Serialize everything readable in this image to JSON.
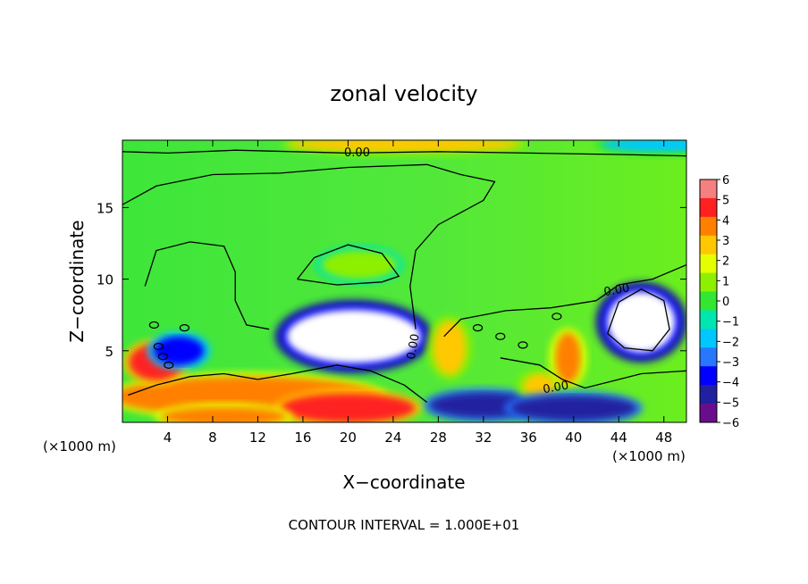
{
  "chart_data": {
    "type": "heatmap",
    "title": "zonal velocity",
    "xlabel": "X−coordinate",
    "ylabel": "Z−coordinate",
    "x_unit": "(×1000 m)",
    "x_ticks": [
      4,
      8,
      12,
      16,
      20,
      24,
      28,
      32,
      36,
      40,
      44,
      48
    ],
    "y_ticks": [
      5,
      10,
      15
    ],
    "xlim": [
      0,
      50
    ],
    "ylim": [
      0,
      19.7
    ],
    "colorbar": {
      "ticks": [
        6,
        5,
        4,
        3,
        2,
        1,
        0,
        -1,
        -2,
        -3,
        -4,
        -5,
        -6
      ],
      "labels": [
        "6",
        "5",
        "4",
        "3",
        "2",
        "1",
        "0",
        "−1",
        "−2",
        "−3",
        "−4",
        "−5",
        "−6"
      ],
      "range": [
        -6,
        6
      ]
    },
    "contour_labels": [
      "0.00",
      "0.00",
      "0.00",
      "0.00"
    ],
    "footer": "CONTOUR INTERVAL = 1.000E+01",
    "features": [
      {
        "x": 11,
        "z": 1.8,
        "value": 4
      },
      {
        "x": 3,
        "z": 4.2,
        "value": 5
      },
      {
        "x": 5,
        "z": 5.0,
        "value": -4
      },
      {
        "x": 20.5,
        "z": 6.0,
        "value": -8
      },
      {
        "x": 32,
        "z": 1.2,
        "value": -5
      },
      {
        "x": 46,
        "z": 7.0,
        "value": -8
      },
      {
        "x": 37,
        "z": 2.5,
        "value": 3
      },
      {
        "x": 39.5,
        "z": 4.5,
        "value": 4
      },
      {
        "x": 29,
        "z": 5.2,
        "value": 3
      },
      {
        "x": 21,
        "z": 11.0,
        "value": 1
      },
      {
        "x": 20,
        "z": 1.0,
        "value": 5
      },
      {
        "x": 9,
        "z": 0.4,
        "value": 4
      },
      {
        "x": 40,
        "z": 1.0,
        "value": -5
      },
      {
        "x": 25,
        "z": 19.4,
        "value": 3
      },
      {
        "x": 48,
        "z": 19.4,
        "value": -2
      }
    ]
  },
  "colors": {
    "palette": [
      "#6a0d8c",
      "#2020a0",
      "#0000ff",
      "#2878ff",
      "#00c8ff",
      "#00e6b0",
      "#32e632",
      "#8cf000",
      "#e6ff00",
      "#ffc800",
      "#ff8000",
      "#ff2020",
      "#f58080"
    ]
  }
}
